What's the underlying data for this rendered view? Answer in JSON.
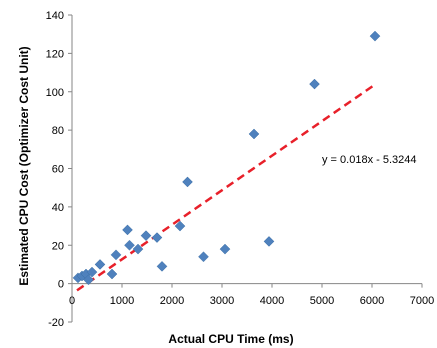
{
  "chart_data": {
    "type": "scatter",
    "title": "",
    "xlabel": "Actual CPU Time (ms)",
    "ylabel": "Estimated CPU Cost (Optimizer Cost Unit)",
    "xlim": [
      0,
      7000
    ],
    "ylim": [
      -20,
      140
    ],
    "xticks": [
      0,
      1000,
      2000,
      3000,
      4000,
      5000,
      6000,
      7000
    ],
    "yticks": [
      -20,
      0,
      20,
      40,
      60,
      80,
      100,
      120,
      140
    ],
    "grid": false,
    "legend": "none",
    "series": [
      {
        "marker": "diamond",
        "color": "#4f81bd",
        "points": [
          {
            "x": 120,
            "y": 3
          },
          {
            "x": 200,
            "y": 4
          },
          {
            "x": 280,
            "y": 5
          },
          {
            "x": 330,
            "y": 2
          },
          {
            "x": 400,
            "y": 6
          },
          {
            "x": 560,
            "y": 10
          },
          {
            "x": 800,
            "y": 5
          },
          {
            "x": 880,
            "y": 15
          },
          {
            "x": 1110,
            "y": 28
          },
          {
            "x": 1150,
            "y": 20
          },
          {
            "x": 1320,
            "y": 18
          },
          {
            "x": 1480,
            "y": 25
          },
          {
            "x": 1700,
            "y": 24
          },
          {
            "x": 1800,
            "y": 9
          },
          {
            "x": 2160,
            "y": 30
          },
          {
            "x": 2310,
            "y": 53
          },
          {
            "x": 2630,
            "y": 14
          },
          {
            "x": 3060,
            "y": 18
          },
          {
            "x": 3640,
            "y": 78
          },
          {
            "x": 3940,
            "y": 22
          },
          {
            "x": 4850,
            "y": 104
          },
          {
            "x": 6060,
            "y": 129
          }
        ]
      }
    ],
    "trendline": {
      "type": "linear",
      "slope": 0.018,
      "intercept": -5.3244,
      "x_range": [
        100,
        6060
      ],
      "color": "#e8202a",
      "style": "dashed"
    },
    "annotation": "y = 0.018x - 5.3244"
  }
}
